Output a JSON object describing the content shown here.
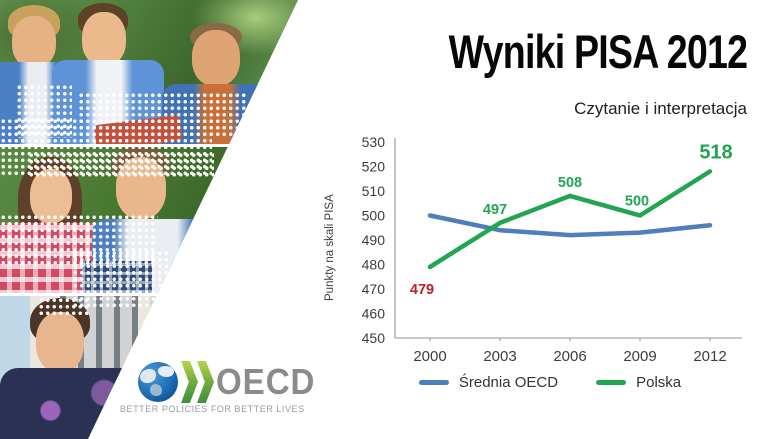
{
  "header": {
    "title": "Wyniki PISA 2012",
    "subtitle": "Czytanie i interpretacja"
  },
  "logo": {
    "name": "OECD",
    "tagline": "BETTER POLICIES FOR BETTER LIVES"
  },
  "photos": [
    {
      "name": "three-teen-boys-outdoors",
      "alt": "Three smiling teenage boys outdoors in front of green foliage"
    },
    {
      "name": "teen-girl-and-boy-outdoors",
      "alt": "Smiling teenage girl in red plaid shirt and teenage boy outdoors"
    },
    {
      "name": "teen-girl-indoors",
      "alt": "Smiling young woman in dark printed top by a window"
    }
  ],
  "chart_data": {
    "type": "line",
    "title": "Czytanie i interpretacja",
    "ylabel": "Punkty na skali PISA",
    "ylim": [
      450,
      530
    ],
    "yticks": [
      450,
      460,
      470,
      480,
      490,
      500,
      510,
      520,
      530
    ],
    "x": [
      "2000",
      "2003",
      "2006",
      "2009",
      "2012"
    ],
    "series": [
      {
        "name": "Średnia OECD",
        "color": "#4e7ebb",
        "values": [
          500,
          494,
          492,
          493,
          496
        ],
        "labeled": false
      },
      {
        "name": "Polska",
        "color": "#22a550",
        "values": [
          479,
          497,
          508,
          500,
          518
        ],
        "labeled": true
      }
    ],
    "first_label_color": "#bf1e2d",
    "axis_color": "#a6a6a6",
    "tick_color": "#3d3d3d",
    "grid": false,
    "legend_position": "bottom"
  }
}
